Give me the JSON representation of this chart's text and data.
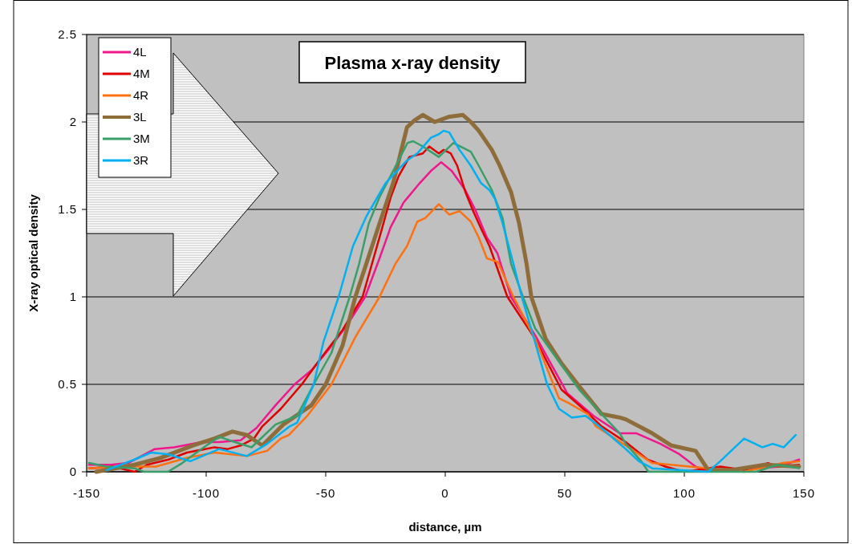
{
  "chart_data": {
    "type": "line",
    "title": "Plasma x-ray density",
    "xlabel": "distance, µm",
    "ylabel": "X-ray optical density",
    "xlim": [
      -150,
      150
    ],
    "xticks": [
      -150,
      -100,
      -50,
      0,
      50,
      100,
      150
    ],
    "ylim": [
      0,
      2.5
    ],
    "yticks": [
      0,
      0.5,
      1,
      1.5,
      2,
      2.5
    ],
    "grid": "y",
    "legend": "top left",
    "marker": "none",
    "line_style": "solid",
    "series": [
      {
        "name": "4L",
        "color": "#f0168c",
        "x": [
          -149,
          -140,
          -132.6,
          -121.5,
          -113.4,
          -102,
          -94.6,
          -85.6,
          -79,
          -71,
          -63,
          -56,
          -48.7,
          -41,
          -33.5,
          -27.5,
          -22.8,
          -17.4,
          -10.7,
          -6,
          -1.7,
          2.7,
          8.4,
          12.8,
          17.4,
          21.8,
          27.5,
          37.6,
          51,
          62,
          73,
          80,
          90,
          98,
          104.7,
          108,
          120,
          130,
          140,
          148
        ],
        "values": [
          0.04,
          0.04,
          0.05,
          0.13,
          0.14,
          0.17,
          0.17,
          0.18,
          0.25,
          0.38,
          0.5,
          0.58,
          0.7,
          0.84,
          1,
          1.22,
          1.4,
          1.54,
          1.65,
          1.72,
          1.77,
          1.72,
          1.61,
          1.49,
          1.34,
          1.25,
          1,
          0.78,
          0.45,
          0.32,
          0.22,
          0.22,
          0.16,
          0.1,
          0.03,
          0.01,
          0.01,
          0.02,
          0.03,
          0.07
        ]
      },
      {
        "name": "4M",
        "color": "#e00000",
        "x": [
          -149,
          -139,
          -130,
          -124.8,
          -115.8,
          -108,
          -96.6,
          -91,
          -85.6,
          -80,
          -76.5,
          -68.8,
          -60,
          -52,
          -43,
          -34.6,
          -27.5,
          -22.8,
          -19.5,
          -15,
          -9.4,
          -6.7,
          -2.7,
          -0.7,
          2.3,
          5,
          8.4,
          11.7,
          15,
          18.5,
          26,
          37.6,
          48.6,
          57.7,
          65.4,
          75.5,
          84.6,
          92,
          100,
          115,
          125,
          135,
          139,
          148
        ],
        "values": [
          0.02,
          0.03,
          0,
          0.04,
          0.07,
          0.11,
          0.14,
          0.13,
          0.15,
          0.19,
          0.26,
          0.36,
          0.5,
          0.65,
          0.81,
          1,
          1.34,
          1.57,
          1.69,
          1.8,
          1.82,
          1.86,
          1.82,
          1.84,
          1.82,
          1.75,
          1.6,
          1.49,
          1.39,
          1.29,
          1,
          0.76,
          0.47,
          0.36,
          0.26,
          0.17,
          0.07,
          0.03,
          0,
          0.03,
          0.01,
          0.05,
          0.03,
          0.04
        ]
      },
      {
        "name": "4R",
        "color": "#ff7010",
        "x": [
          -149,
          -136,
          -121,
          -108,
          -96.6,
          -83,
          -74.5,
          -68.8,
          -65.4,
          -57.7,
          -47.6,
          -37.6,
          -27.5,
          -20.8,
          -16,
          -11.7,
          -8.4,
          -2.7,
          1.7,
          6,
          10.7,
          14,
          17.4,
          22,
          28.5,
          37.6,
          47.6,
          52,
          59.7,
          63,
          71,
          75.5,
          86.6,
          110,
          125,
          141,
          148
        ],
        "values": [
          0.02,
          0.03,
          0.03,
          0.08,
          0.11,
          0.09,
          0.12,
          0.19,
          0.21,
          0.32,
          0.5,
          0.77,
          1,
          1.19,
          1.29,
          1.43,
          1.45,
          1.53,
          1.47,
          1.49,
          1.43,
          1.34,
          1.22,
          1.2,
          1,
          0.76,
          0.42,
          0.39,
          0.33,
          0.26,
          0.19,
          0.15,
          0.05,
          0.02,
          0,
          0.05,
          0.06
        ]
      },
      {
        "name": "3L",
        "color": "#8e6d3a",
        "x": [
          -146,
          -130,
          -119,
          -105.7,
          -96.6,
          -89,
          -83,
          -76.5,
          -67.8,
          -56,
          -50,
          -43,
          -37.6,
          -33,
          -27.5,
          -21.8,
          -16,
          -12.8,
          -9.4,
          -4.4,
          1.7,
          7.4,
          10.7,
          14,
          19.5,
          22.8,
          27.5,
          30.9,
          34,
          36,
          42,
          48.6,
          56,
          65.4,
          73,
          75.5,
          86.6,
          94.6,
          104.7,
          110,
          120,
          133.6,
          148
        ],
        "values": [
          0,
          0.04,
          0.08,
          0.15,
          0.19,
          0.23,
          0.21,
          0.15,
          0.27,
          0.38,
          0.5,
          0.72,
          1,
          1.19,
          1.42,
          1.65,
          1.97,
          2.01,
          2.04,
          2,
          2.03,
          2.04,
          2,
          1.95,
          1.84,
          1.75,
          1.6,
          1.42,
          1.19,
          1,
          0.76,
          0.62,
          0.49,
          0.33,
          0.31,
          0.3,
          0.22,
          0.15,
          0.12,
          0.01,
          0.01,
          0.04,
          0.03
        ]
      },
      {
        "name": "3M",
        "color": "#3a9e6a",
        "x": [
          -149,
          -141.6,
          -130,
          -126,
          -116,
          -110,
          -101,
          -94.6,
          -88,
          -81,
          -71,
          -62,
          -55,
          -47.6,
          -40,
          -36,
          -32,
          -27.5,
          -21.8,
          -15.8,
          -13.4,
          -9.4,
          -2.7,
          3.4,
          10.7,
          14,
          19.5,
          24,
          27.5,
          32.5,
          37.6,
          48.6,
          56,
          65.4,
          73,
          75.5,
          82,
          85,
          100,
          130,
          139,
          148
        ],
        "values": [
          0.05,
          0.03,
          0.02,
          0,
          0,
          0.05,
          0.14,
          0.2,
          0.17,
          0.14,
          0.27,
          0.32,
          0.5,
          0.68,
          1,
          1.19,
          1.42,
          1.57,
          1.72,
          1.88,
          1.89,
          1.86,
          1.8,
          1.88,
          1.83,
          1.75,
          1.61,
          1.45,
          1.19,
          1,
          0.82,
          0.61,
          0.47,
          0.33,
          0.22,
          0.16,
          0.06,
          0,
          0,
          0,
          0.04,
          0.02
        ]
      },
      {
        "name": "3R",
        "color": "#00b0f0",
        "x": [
          -141.6,
          -130,
          -123,
          -115.8,
          -106.7,
          -94.6,
          -83,
          -74.5,
          -65,
          -62,
          -55,
          -51,
          -44.6,
          -38.6,
          -33,
          -25,
          -16,
          -11.7,
          -6,
          -2.7,
          -0.7,
          1.7,
          6,
          10.7,
          15,
          18.5,
          20.8,
          24,
          28.5,
          32,
          37.6,
          42.6,
          47.6,
          53,
          58.7,
          64.4,
          75.5,
          81,
          86.6,
          110,
          115,
          125,
          132.6,
          137,
          141.6,
          146.6
        ],
        "values": [
          0.01,
          0.07,
          0.11,
          0.1,
          0.06,
          0.13,
          0.09,
          0.16,
          0.26,
          0.28,
          0.5,
          0.74,
          1,
          1.29,
          1.46,
          1.65,
          1.78,
          1.82,
          1.91,
          1.93,
          1.95,
          1.94,
          1.84,
          1.75,
          1.65,
          1.61,
          1.56,
          1.42,
          1.19,
          1,
          0.74,
          0.5,
          0.36,
          0.31,
          0.32,
          0.26,
          0.13,
          0.06,
          0.02,
          0,
          0.06,
          0.19,
          0.14,
          0.16,
          0.14,
          0.21
        ]
      }
    ]
  }
}
